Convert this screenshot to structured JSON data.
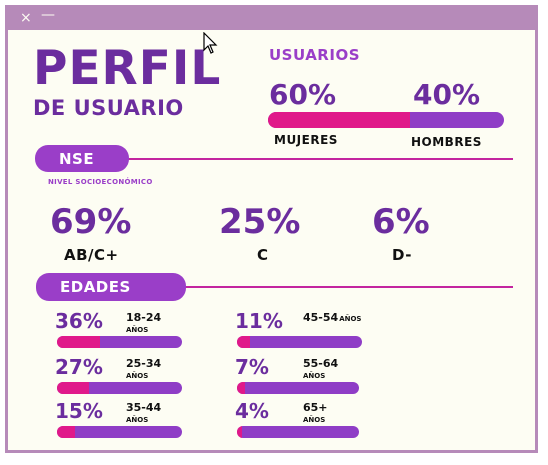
{
  "window": {
    "close_icon": "×",
    "minimize_icon": "—"
  },
  "header": {
    "title_line1": "PERFIL",
    "title_line2": "DE USUARIO"
  },
  "users": {
    "heading": "USUARIOS",
    "women_pct": "60%",
    "men_pct": "40%",
    "women_label": "MUJERES",
    "men_label": "HOMBRES",
    "women_fraction": 0.6
  },
  "nse": {
    "pill_label": "NSE",
    "subtitle": "NIVEL SOCIOECONÓMICO",
    "items": [
      {
        "pct": "69%",
        "label": "AB/C+"
      },
      {
        "pct": "25%",
        "label": "C"
      },
      {
        "pct": "6%",
        "label": "D-"
      }
    ]
  },
  "ages": {
    "pill_label": "EDADES",
    "unit": "AÑOS",
    "items": [
      {
        "pct": "36%",
        "range": "18-24",
        "fraction": 0.36
      },
      {
        "pct": "27%",
        "range": "25-34",
        "fraction": 0.27
      },
      {
        "pct": "15%",
        "range": "35-44",
        "fraction": 0.15
      },
      {
        "pct": "11%",
        "range": "45-54",
        "fraction": 0.11
      },
      {
        "pct": "7%",
        "range": "55-64",
        "fraction": 0.07
      },
      {
        "pct": "4%",
        "range": "65+",
        "fraction": 0.04
      }
    ]
  },
  "colors": {
    "purple": "#6b2d9e",
    "violet": "#9a3ec8",
    "magenta": "#e0198a",
    "frame": "#b68ab9"
  }
}
